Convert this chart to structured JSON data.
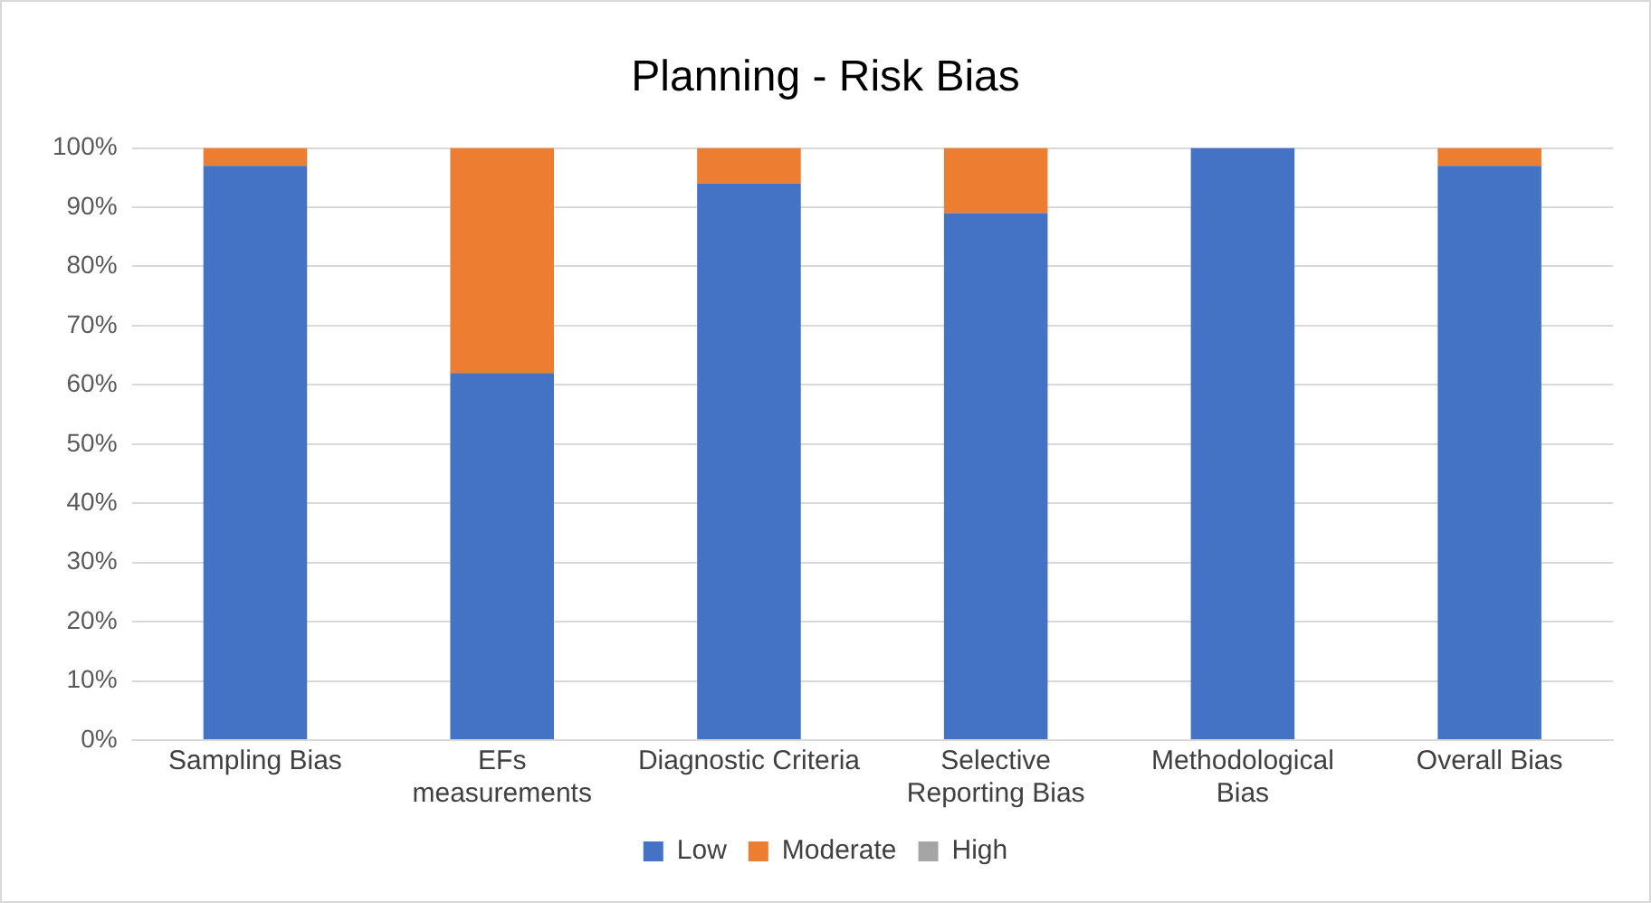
{
  "chart_data": {
    "type": "bar",
    "title": "Planning - Risk Bias",
    "stacked": true,
    "categories": [
      "Sampling Bias",
      "EFs measurements",
      "Diagnostic Criteria",
      "Selective Reporting Bias",
      "Methodological Bias",
      "Overall Bias"
    ],
    "series": [
      {
        "name": "Low",
        "color": "#4472c4",
        "values": [
          97,
          62,
          94,
          89,
          100,
          97
        ]
      },
      {
        "name": "Moderate",
        "color": "#ed7d31",
        "values": [
          3,
          38,
          6,
          11,
          0,
          3
        ]
      },
      {
        "name": "High",
        "color": "#a5a5a5",
        "values": [
          0,
          0,
          0,
          0,
          0,
          0
        ]
      }
    ],
    "ylim": [
      0,
      100
    ],
    "yticks": [
      {
        "value": 0,
        "label": "0%"
      },
      {
        "value": 10,
        "label": "10%"
      },
      {
        "value": 20,
        "label": "20%"
      },
      {
        "value": 30,
        "label": "30%"
      },
      {
        "value": 40,
        "label": "40%"
      },
      {
        "value": 50,
        "label": "50%"
      },
      {
        "value": 60,
        "label": "60%"
      },
      {
        "value": 70,
        "label": "70%"
      },
      {
        "value": 80,
        "label": "80%"
      },
      {
        "value": 90,
        "label": "90%"
      },
      {
        "value": 100,
        "label": "100%"
      }
    ],
    "grid": "y",
    "legend": "bottom"
  }
}
